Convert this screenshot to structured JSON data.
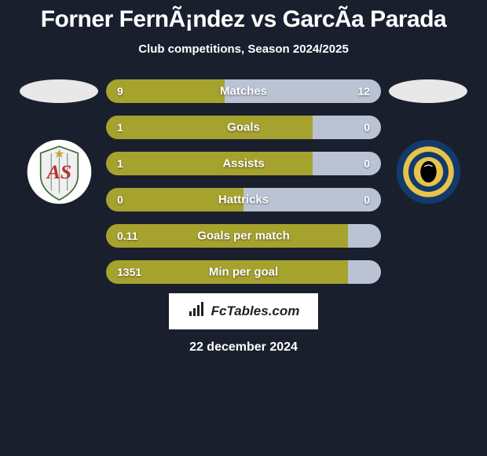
{
  "title": "Forner FernÃ¡ndez vs GarcÃ­a Parada",
  "subtitle": "Club competitions, Season 2024/2025",
  "date": "22 december 2024",
  "logo_text": "FcTables.com",
  "colors": {
    "left_bar": "#a6a22e",
    "right_bar": "#b9c3d4",
    "background": "#1a1f2e",
    "ellipse": "#e8e8e8"
  },
  "bars": [
    {
      "label": "Matches",
      "left_val": "9",
      "right_val": "12",
      "left_pct": 43
    },
    {
      "label": "Goals",
      "left_val": "1",
      "right_val": "0",
      "left_pct": 75
    },
    {
      "label": "Assists",
      "left_val": "1",
      "right_val": "0",
      "left_pct": 75
    },
    {
      "label": "Hattricks",
      "left_val": "0",
      "right_val": "0",
      "left_pct": 50
    },
    {
      "label": "Goals per match",
      "left_val": "0.11",
      "right_val": "",
      "left_pct": 88
    },
    {
      "label": "Min per goal",
      "left_val": "1351",
      "right_val": "",
      "left_pct": 88
    }
  ],
  "club_left": {
    "bg": "#ffffff",
    "shield_fill": "#f0f0f0",
    "shield_stroke": "#3a6b3a",
    "letter_color": "#b92f2f",
    "star_color": "#c9a53b"
  },
  "club_right": {
    "bg": "#123a6b",
    "ring_outer": "#e8c34a",
    "ring_inner": "#123a6b",
    "center": "#000000"
  }
}
